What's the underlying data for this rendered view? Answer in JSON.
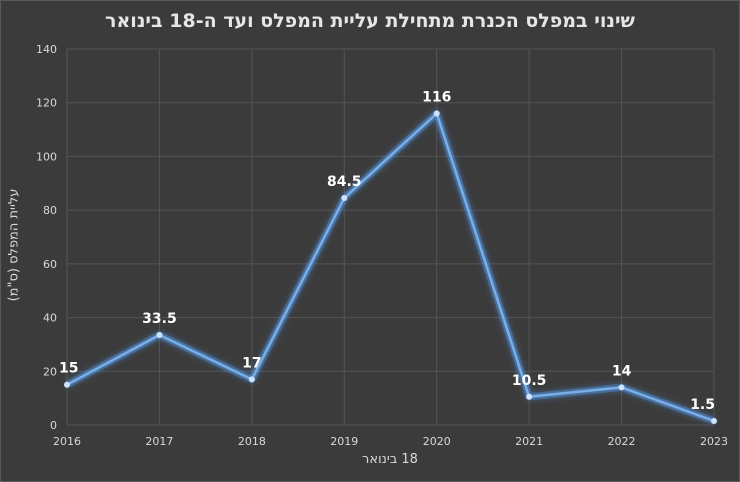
{
  "chart_data": {
    "type": "line",
    "title": "שינוי במפלס הכנרת מתחילת עליית המפלס ועד ה-18 בינואר",
    "xlabel": "18 בינואר",
    "ylabel": "עליית המפלס (ס\"מ)",
    "categories": [
      "2016",
      "2017",
      "2018",
      "2019",
      "2020",
      "2021",
      "2022",
      "2023"
    ],
    "values": [
      15,
      33.5,
      17,
      84.5,
      116,
      10.5,
      14,
      1.5
    ],
    "data_labels": [
      "15",
      "33.5",
      "17",
      "84.5",
      "116",
      "10.5",
      "14",
      "1.5"
    ],
    "ylim": [
      0,
      140
    ],
    "yticks": [
      "0",
      "20",
      "40",
      "60",
      "80",
      "100",
      "120",
      "140"
    ],
    "grid": true,
    "colors": {
      "background": "#3b3b3b",
      "line": "#7aaee6",
      "glow": "#4f8fd8",
      "grid": "#555555",
      "text": "#d9d9d9"
    }
  }
}
